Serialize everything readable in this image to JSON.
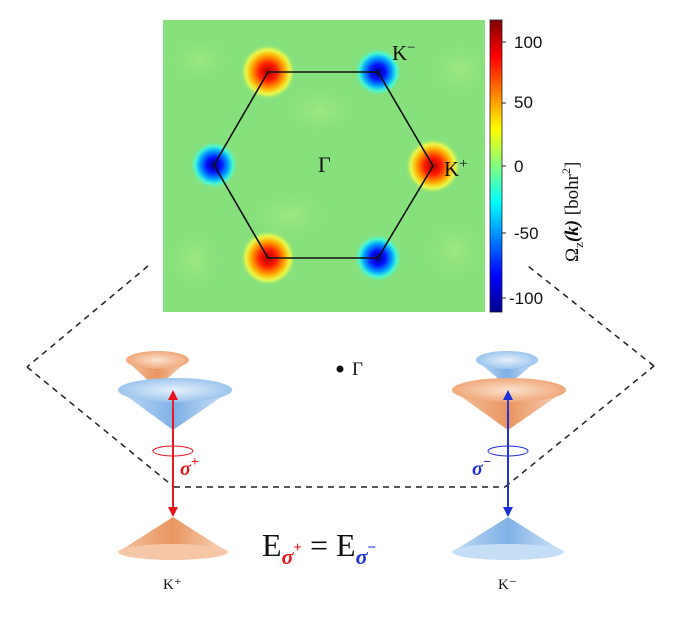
{
  "heatmap": {
    "gamma_label": "Γ",
    "k_minus_label": "K",
    "k_minus_sup": "−",
    "k_plus_label": "K",
    "k_plus_sup": "+"
  },
  "colorbar": {
    "ticks": [
      "100",
      "50",
      "0",
      "-50",
      "-100"
    ],
    "label_omega": "Ω",
    "label_sub": "z",
    "label_k": "(k)",
    "label_unit": "[bohr",
    "label_unit_sup": "2",
    "label_unit_close": "]",
    "colors": [
      "#00008f",
      "#0000ff",
      "#00ffff",
      "#80ff80",
      "#ffff00",
      "#ff0000",
      "#800000"
    ]
  },
  "valley": {
    "gamma_label": "Γ",
    "sigma_plus": "σ",
    "sigma_plus_sup": "+",
    "sigma_minus": "σ",
    "sigma_minus_sup": "−",
    "k_plus_bottom": "K⁺",
    "k_minus_bottom": "K⁻"
  },
  "equation": {
    "E1": "E",
    "sub1": "σ",
    "sub1_sup": "+",
    "equals": "=",
    "E2": "E",
    "sub2": "σ",
    "sub2_sup": "−"
  },
  "palette": {
    "red": "#e8141b",
    "blue": "#1c2fd6",
    "orange": "#f0a070",
    "lightblue": "#8ec0f0",
    "background_green": "#86e07c"
  }
}
